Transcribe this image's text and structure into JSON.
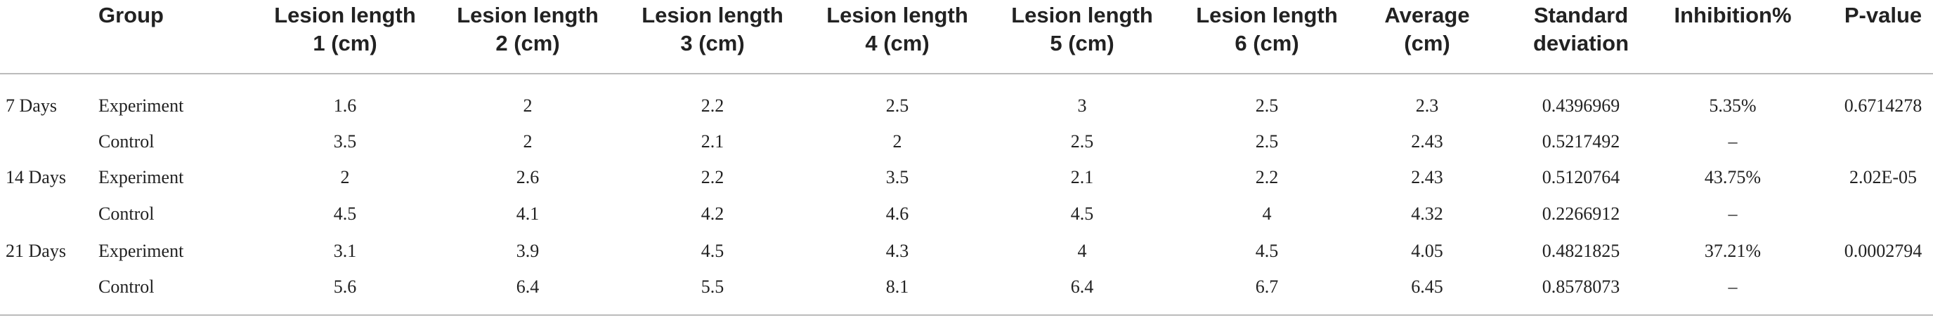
{
  "table": {
    "header": [
      "Group",
      "Lesion length\n1 (cm)",
      "Lesion length\n2 (cm)",
      "Lesion length\n3 (cm)",
      "Lesion length\n4 (cm)",
      "Lesion length\n5 (cm)",
      "Lesion length\n6 (cm)",
      "Average\n(cm)",
      "Standard\ndeviation",
      "Inhibition%",
      "P-value"
    ],
    "rows": [
      [
        "7 Days",
        "Experiment",
        "1.6",
        "2",
        "2.2",
        "2.5",
        "3",
        "2.5",
        "2.3",
        "0.4396969",
        "5.35%",
        "0.6714278"
      ],
      [
        null,
        "Control",
        "3.5",
        "2",
        "2.1",
        "2",
        "2.5",
        "2.5",
        "2.43",
        "0.5217492",
        "–",
        null
      ],
      [
        "14 Days",
        "Experiment",
        "2",
        "2.6",
        "2.2",
        "3.5",
        "2.1",
        "2.2",
        "2.43",
        "0.5120764",
        "43.75%",
        "2.02E-05"
      ],
      [
        null,
        "Control",
        "4.5",
        "4.1",
        "4.2",
        "4.6",
        "4.5",
        "4",
        "4.32",
        "0.2266912",
        "–",
        null
      ],
      [
        "21 Days",
        "Experiment",
        "3.1",
        "3.9",
        "4.5",
        "4.3",
        "4",
        "4.5",
        "4.05",
        "0.4821825",
        "37.21%",
        "0.0002794"
      ],
      [
        null,
        "Control",
        "5.6",
        "6.4",
        "5.5",
        "8.1",
        "6.4",
        "6.7",
        "6.45",
        "0.8578073",
        "–",
        null
      ]
    ]
  }
}
